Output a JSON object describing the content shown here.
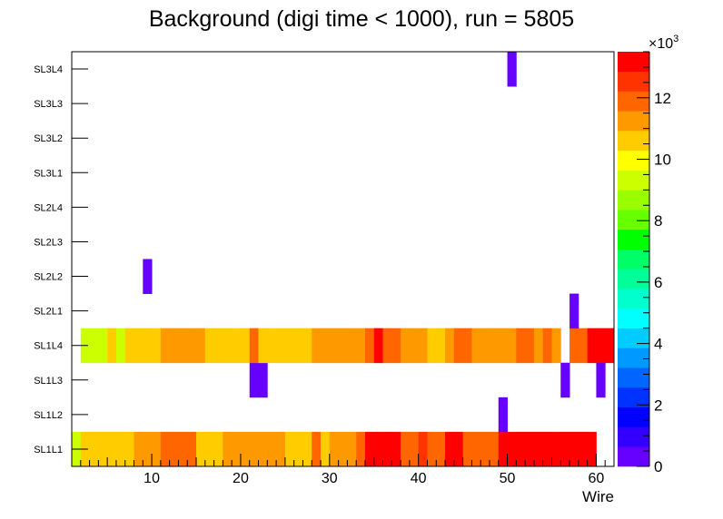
{
  "chart_data": {
    "type": "heatmap",
    "title": "Background (digi time < 1000), run = 5805",
    "xlabel": "Wire",
    "ylabel": "",
    "xlim": [
      1,
      61
    ],
    "x_ticks": [
      10,
      20,
      30,
      40,
      50,
      60
    ],
    "x_tick_labels": [
      "10",
      "20",
      "30",
      "40",
      "50",
      "60"
    ],
    "y_categories": [
      "SL1L1",
      "SL1L2",
      "SL1L3",
      "SL1L4",
      "SL2L1",
      "SL2L2",
      "SL2L3",
      "SL2L4",
      "SL3L1",
      "SL3L2",
      "SL3L3",
      "SL3L4"
    ],
    "zlim": [
      0,
      13500
    ],
    "z_ticks": [
      0,
      2000,
      4000,
      6000,
      8000,
      10000,
      12000
    ],
    "z_tick_labels": [
      "0",
      "2",
      "4",
      "6",
      "8",
      "10",
      "12"
    ],
    "z_exponent_label": "×10",
    "z_exponent_power": "3",
    "cells": {
      "SL1L1": [
        [
          1,
          9200
        ],
        [
          2,
          10300
        ],
        [
          3,
          10300
        ],
        [
          4,
          10300
        ],
        [
          5,
          10300
        ],
        [
          6,
          10300
        ],
        [
          7,
          10300
        ],
        [
          8,
          11000
        ],
        [
          9,
          11000
        ],
        [
          10,
          11000
        ],
        [
          11,
          11800
        ],
        [
          12,
          11800
        ],
        [
          13,
          11800
        ],
        [
          14,
          11800
        ],
        [
          15,
          10900
        ],
        [
          16,
          10300
        ],
        [
          17,
          10300
        ],
        [
          18,
          11000
        ],
        [
          19,
          11000
        ],
        [
          20,
          11000
        ],
        [
          21,
          11000
        ],
        [
          22,
          11000
        ],
        [
          23,
          11000
        ],
        [
          24,
          11000
        ],
        [
          25,
          10300
        ],
        [
          26,
          10300
        ],
        [
          27,
          10300
        ],
        [
          28,
          11800
        ],
        [
          29,
          10900
        ],
        [
          30,
          11000
        ],
        [
          31,
          11000
        ],
        [
          32,
          11000
        ],
        [
          33,
          11800
        ],
        [
          34,
          12900
        ],
        [
          35,
          12900
        ],
        [
          36,
          12900
        ],
        [
          37,
          12900
        ],
        [
          38,
          11800
        ],
        [
          39,
          11800
        ],
        [
          40,
          12400
        ],
        [
          41,
          11800
        ],
        [
          42,
          11800
        ],
        [
          43,
          12900
        ],
        [
          44,
          12900
        ],
        [
          45,
          11800
        ],
        [
          46,
          11800
        ],
        [
          47,
          11800
        ],
        [
          48,
          11800
        ],
        [
          49,
          12900
        ],
        [
          50,
          12900
        ],
        [
          51,
          12900
        ],
        [
          52,
          12900
        ],
        [
          53,
          12900
        ],
        [
          54,
          12900
        ],
        [
          55,
          12900
        ],
        [
          56,
          12900
        ],
        [
          57,
          13500
        ],
        [
          58,
          13500
        ],
        [
          59,
          13500
        ]
      ],
      "SL1L2": [
        [
          49,
          400
        ]
      ],
      "SL1L3": [
        [
          21,
          400
        ],
        [
          22,
          400
        ],
        [
          56,
          400
        ],
        [
          60,
          400
        ]
      ],
      "SL1L4": [
        [
          2,
          9200
        ],
        [
          3,
          9200
        ],
        [
          4,
          9200
        ],
        [
          5,
          10300
        ],
        [
          6,
          9600
        ],
        [
          7,
          10300
        ],
        [
          8,
          10300
        ],
        [
          9,
          10300
        ],
        [
          10,
          10300
        ],
        [
          11,
          11000
        ],
        [
          12,
          11000
        ],
        [
          13,
          11000
        ],
        [
          14,
          11000
        ],
        [
          15,
          11000
        ],
        [
          16,
          10300
        ],
        [
          17,
          10900
        ],
        [
          18,
          10300
        ],
        [
          19,
          10300
        ],
        [
          20,
          10300
        ],
        [
          21,
          11800
        ],
        [
          22,
          10300
        ],
        [
          23,
          10300
        ],
        [
          24,
          10300
        ],
        [
          25,
          10300
        ],
        [
          26,
          10900
        ],
        [
          27,
          10300
        ],
        [
          28,
          11000
        ],
        [
          29,
          11000
        ],
        [
          30,
          11000
        ],
        [
          31,
          11000
        ],
        [
          32,
          11000
        ],
        [
          33,
          11000
        ],
        [
          34,
          11800
        ],
        [
          35,
          13500
        ],
        [
          36,
          11800
        ],
        [
          37,
          11800
        ],
        [
          38,
          11000
        ],
        [
          39,
          11000
        ],
        [
          40,
          11000
        ],
        [
          41,
          10300
        ],
        [
          42,
          10300
        ],
        [
          43,
          11000
        ],
        [
          44,
          11800
        ],
        [
          45,
          11800
        ],
        [
          46,
          11000
        ],
        [
          47,
          11000
        ],
        [
          48,
          11000
        ],
        [
          49,
          11000
        ],
        [
          50,
          11000
        ],
        [
          51,
          11800
        ],
        [
          52,
          11800
        ],
        [
          53,
          11000
        ],
        [
          54,
          11800
        ],
        [
          55,
          11000
        ],
        [
          57,
          11800
        ],
        [
          58,
          11800
        ],
        [
          59,
          12900
        ],
        [
          60,
          12900
        ],
        [
          61,
          12900
        ]
      ],
      "SL2L1": [
        [
          57,
          400
        ]
      ],
      "SL2L2": [
        [
          9,
          400
        ]
      ],
      "SL3L4": [
        [
          50,
          400
        ]
      ]
    }
  }
}
